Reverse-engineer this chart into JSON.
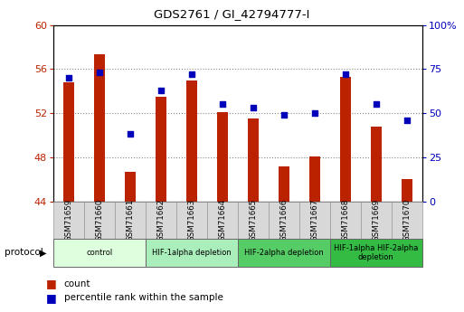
{
  "title": "GDS2761 / GI_42794777-I",
  "samples": [
    "GSM71659",
    "GSM71660",
    "GSM71661",
    "GSM71662",
    "GSM71663",
    "GSM71664",
    "GSM71665",
    "GSM71666",
    "GSM71667",
    "GSM71668",
    "GSM71669",
    "GSM71670"
  ],
  "bar_values": [
    54.8,
    57.3,
    46.7,
    53.5,
    55.0,
    52.1,
    51.5,
    47.2,
    48.1,
    55.3,
    50.8,
    46.0
  ],
  "dot_values": [
    70,
    73,
    38,
    63,
    72,
    55,
    53,
    49,
    50,
    72,
    55,
    46
  ],
  "bar_bottom": 44,
  "ylim_left": [
    44,
    60
  ],
  "ylim_right": [
    0,
    100
  ],
  "yticks_left": [
    44,
    48,
    52,
    56,
    60
  ],
  "yticks_right": [
    0,
    25,
    50,
    75,
    100
  ],
  "bar_color": "#bb2200",
  "dot_color": "#0000bb",
  "protocol_groups": [
    {
      "label": "control",
      "start": 0,
      "end": 3,
      "color": "#ddffdd"
    },
    {
      "label": "HIF-1alpha depletion",
      "start": 3,
      "end": 6,
      "color": "#aaeebb"
    },
    {
      "label": "HIF-2alpha depletion",
      "start": 6,
      "end": 9,
      "color": "#55cc66"
    },
    {
      "label": "HIF-1alpha HIF-2alpha\ndepletion",
      "start": 9,
      "end": 12,
      "color": "#33bb44"
    }
  ],
  "legend_count_label": "count",
  "legend_pct_label": "percentile rank within the sample",
  "protocol_label": "protocol"
}
